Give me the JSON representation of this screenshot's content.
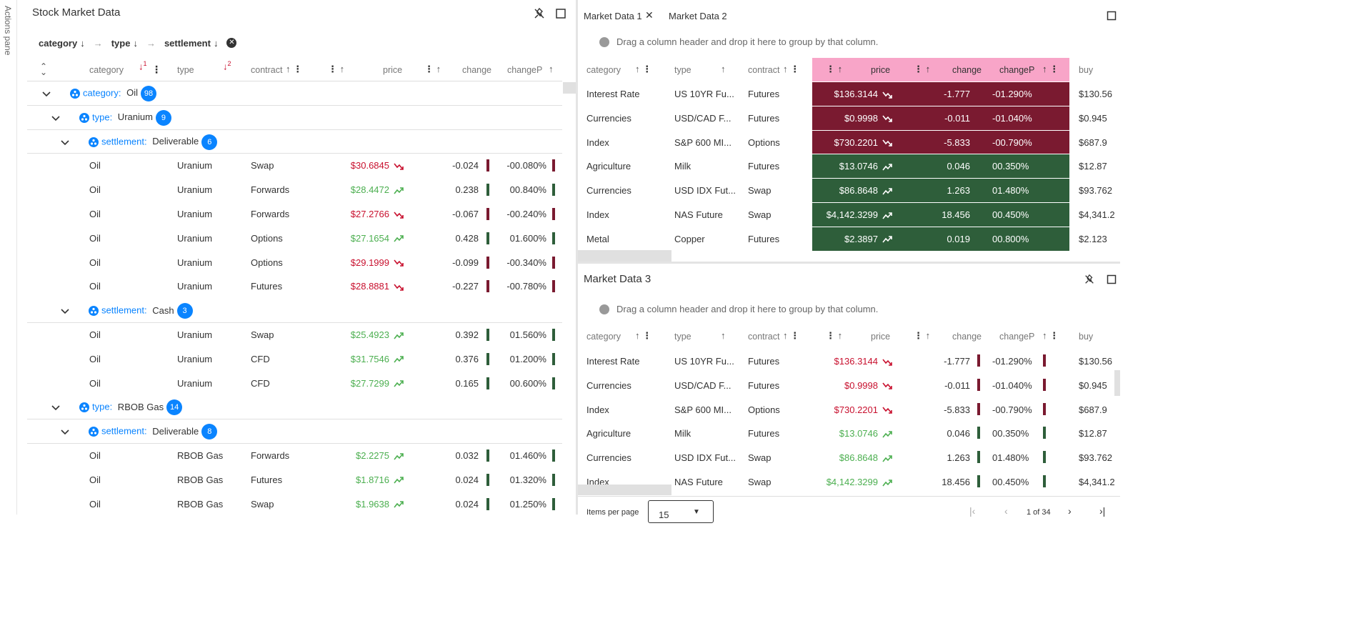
{
  "actions_pane": {
    "label": "Actions pane"
  },
  "left_panel": {
    "title": "Stock Market Data",
    "group_chips": [
      {
        "label": "category"
      },
      {
        "label": "type"
      },
      {
        "label": "settlement"
      }
    ],
    "headers": {
      "category": "category",
      "type": "type",
      "contract": "contract",
      "price": "price",
      "change": "change",
      "changeP": "changeP",
      "sort1": "1",
      "sort2": "2"
    },
    "rows": [
      {
        "kind": "group",
        "level": 0,
        "label": "category:",
        "value": "Oil",
        "count": "98"
      },
      {
        "kind": "group",
        "level": 1,
        "label": "type:",
        "value": "Uranium",
        "count": "9"
      },
      {
        "kind": "group",
        "level": 2,
        "label": "settlement:",
        "value": "Deliverable",
        "count": "6"
      },
      {
        "kind": "data",
        "category": "Oil",
        "type": "Uranium",
        "contract": "Swap",
        "price": "$30.6845",
        "change": "-0.024",
        "changeP": "-00.080%",
        "dir": "down"
      },
      {
        "kind": "data",
        "category": "Oil",
        "type": "Uranium",
        "contract": "Forwards",
        "price": "$28.4472",
        "change": "0.238",
        "changeP": "00.840%",
        "dir": "up"
      },
      {
        "kind": "data",
        "category": "Oil",
        "type": "Uranium",
        "contract": "Forwards",
        "price": "$27.2766",
        "change": "-0.067",
        "changeP": "-00.240%",
        "dir": "down"
      },
      {
        "kind": "data",
        "category": "Oil",
        "type": "Uranium",
        "contract": "Options",
        "price": "$27.1654",
        "change": "0.428",
        "changeP": "01.600%",
        "dir": "up"
      },
      {
        "kind": "data",
        "category": "Oil",
        "type": "Uranium",
        "contract": "Options",
        "price": "$29.1999",
        "change": "-0.099",
        "changeP": "-00.340%",
        "dir": "down"
      },
      {
        "kind": "data",
        "category": "Oil",
        "type": "Uranium",
        "contract": "Futures",
        "price": "$28.8881",
        "change": "-0.227",
        "changeP": "-00.780%",
        "dir": "down"
      },
      {
        "kind": "group",
        "level": 2,
        "label": "settlement:",
        "value": "Cash",
        "count": "3"
      },
      {
        "kind": "data",
        "category": "Oil",
        "type": "Uranium",
        "contract": "Swap",
        "price": "$25.4923",
        "change": "0.392",
        "changeP": "01.560%",
        "dir": "up"
      },
      {
        "kind": "data",
        "category": "Oil",
        "type": "Uranium",
        "contract": "CFD",
        "price": "$31.7546",
        "change": "0.376",
        "changeP": "01.200%",
        "dir": "up"
      },
      {
        "kind": "data",
        "category": "Oil",
        "type": "Uranium",
        "contract": "CFD",
        "price": "$27.7299",
        "change": "0.165",
        "changeP": "00.600%",
        "dir": "up"
      },
      {
        "kind": "group",
        "level": 1,
        "label": "type:",
        "value": "RBOB Gas",
        "count": "14"
      },
      {
        "kind": "group",
        "level": 2,
        "label": "settlement:",
        "value": "Deliverable",
        "count": "8"
      },
      {
        "kind": "data",
        "category": "Oil",
        "type": "RBOB Gas",
        "contract": "Forwards",
        "price": "$2.2275",
        "change": "0.032",
        "changeP": "01.460%",
        "dir": "up"
      },
      {
        "kind": "data",
        "category": "Oil",
        "type": "RBOB Gas",
        "contract": "Futures",
        "price": "$1.8716",
        "change": "0.024",
        "changeP": "01.320%",
        "dir": "up"
      },
      {
        "kind": "data",
        "category": "Oil",
        "type": "RBOB Gas",
        "contract": "Swap",
        "price": "$1.9638",
        "change": "0.024",
        "changeP": "01.250%",
        "dir": "up"
      }
    ]
  },
  "right_top": {
    "tabs": [
      {
        "label": "Market Data 1"
      },
      {
        "label": "Market Data 2"
      }
    ],
    "drop_hint": "Drag a column header and drop it here to group by that column.",
    "headers": {
      "category": "category",
      "type": "type",
      "contract": "contract",
      "price": "price",
      "change": "change",
      "changeP": "changeP",
      "buy": "buy"
    },
    "rows": [
      {
        "category": "Interest Rate",
        "type": "US 10YR Fu...",
        "contract": "Futures",
        "price": "$136.3144",
        "change": "-1.777",
        "changeP": "-01.290%",
        "buy": "$130.56",
        "dir": "down"
      },
      {
        "category": "Currencies",
        "type": "USD/CAD F...",
        "contract": "Futures",
        "price": "$0.9998",
        "change": "-0.011",
        "changeP": "-01.040%",
        "buy": "$0.945",
        "dir": "down"
      },
      {
        "category": "Index",
        "type": "S&P 600 MI...",
        "contract": "Options",
        "price": "$730.2201",
        "change": "-5.833",
        "changeP": "-00.790%",
        "buy": "$687.9",
        "dir": "down"
      },
      {
        "category": "Agriculture",
        "type": "Milk",
        "contract": "Futures",
        "price": "$13.0746",
        "change": "0.046",
        "changeP": "00.350%",
        "buy": "$12.87",
        "dir": "up"
      },
      {
        "category": "Currencies",
        "type": "USD IDX Fut...",
        "contract": "Swap",
        "price": "$86.8648",
        "change": "1.263",
        "changeP": "01.480%",
        "buy": "$93.762",
        "dir": "up"
      },
      {
        "category": "Index",
        "type": "NAS Future",
        "contract": "Swap",
        "price": "$4,142.3299",
        "change": "18.456",
        "changeP": "00.450%",
        "buy": "$4,341.2",
        "dir": "up"
      },
      {
        "category": "Metal",
        "type": "Copper",
        "contract": "Futures",
        "price": "$2.3897",
        "change": "0.019",
        "changeP": "00.800%",
        "buy": "$2.123",
        "dir": "up"
      }
    ]
  },
  "right_bottom": {
    "title": "Market Data 3",
    "drop_hint": "Drag a column header and drop it here to group by that column.",
    "headers": {
      "category": "category",
      "type": "type",
      "contract": "contract",
      "price": "price",
      "change": "change",
      "changeP": "changeP",
      "buy": "buy"
    },
    "rows": [
      {
        "category": "Interest Rate",
        "type": "US 10YR Fu...",
        "contract": "Futures",
        "price": "$136.3144",
        "change": "-1.777",
        "changeP": "-01.290%",
        "buy": "$130.56",
        "dir": "down"
      },
      {
        "category": "Currencies",
        "type": "USD/CAD F...",
        "contract": "Futures",
        "price": "$0.9998",
        "change": "-0.011",
        "changeP": "-01.040%",
        "buy": "$0.945",
        "dir": "down"
      },
      {
        "category": "Index",
        "type": "S&P 600 MI...",
        "contract": "Options",
        "price": "$730.2201",
        "change": "-5.833",
        "changeP": "-00.790%",
        "buy": "$687.9",
        "dir": "down"
      },
      {
        "category": "Agriculture",
        "type": "Milk",
        "contract": "Futures",
        "price": "$13.0746",
        "change": "0.046",
        "changeP": "00.350%",
        "buy": "$12.87",
        "dir": "up"
      },
      {
        "category": "Currencies",
        "type": "USD IDX Fut...",
        "contract": "Swap",
        "price": "$86.8648",
        "change": "1.263",
        "changeP": "01.480%",
        "buy": "$93.762",
        "dir": "up"
      },
      {
        "category": "Index",
        "type": "NAS Future",
        "contract": "Swap",
        "price": "$4,142.3299",
        "change": "18.456",
        "changeP": "00.450%",
        "buy": "$4,341.2",
        "dir": "up"
      }
    ],
    "pager": {
      "items_per_page_label": "Items per page",
      "page_size": "15",
      "page_info": "1 of 34"
    }
  },
  "colors": {
    "accent": "#0a84ff",
    "up": "#4caf50",
    "down": "#c8102e",
    "up_dark": "#2e5e3a",
    "down_dark": "#7a1a30",
    "highlight_header": "#f8a5c8"
  }
}
